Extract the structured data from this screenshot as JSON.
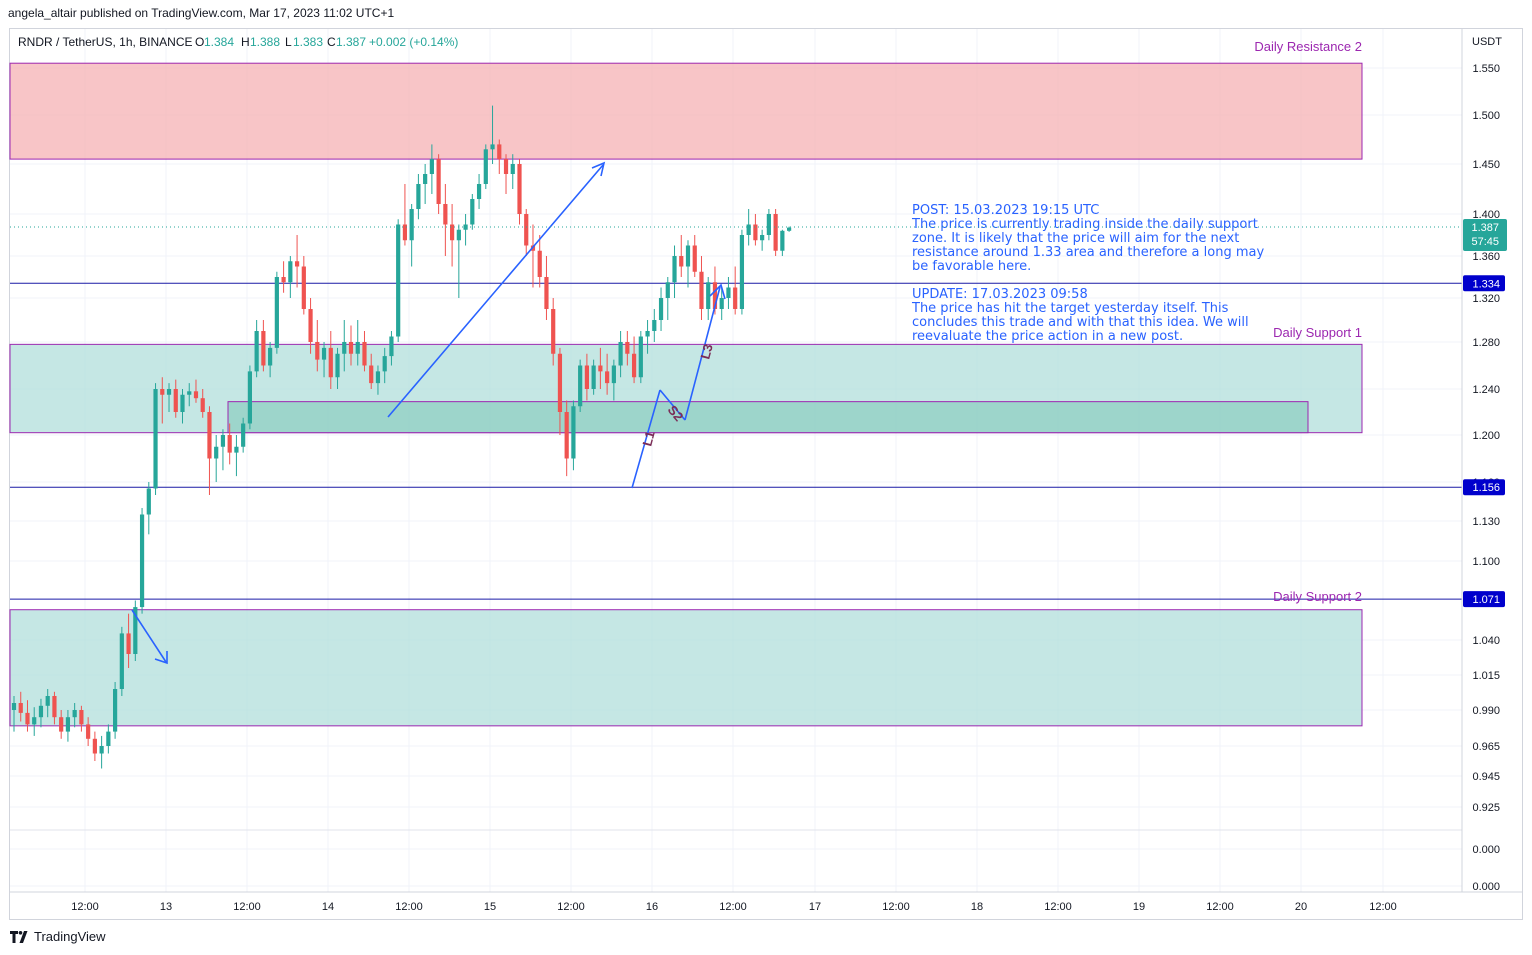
{
  "header": {
    "publisher": "angela_altair published on TradingView.com, Mar 17, 2023 11:02 UTC+1"
  },
  "footer": {
    "brand": "TradingView",
    "logo_icon": "tradingview-logo-icon"
  },
  "colors": {
    "up": "#26a69a",
    "down": "#ef5350",
    "line": "#1a1aa6",
    "drawing": "#2962ff",
    "resistance_fill": "#f6b1b4",
    "support_fill": "#b2dfdb",
    "support_inner_fill": "#8fcfc3",
    "zone_border": "#9c27b0",
    "zone_label": "#9c27b0",
    "price_badge": "#0000cc",
    "last_price": "#26a69a"
  },
  "chart_data": {
    "type": "candlestick",
    "symbol_line": {
      "symbol": "RNDR / TetherUS, 1h, BINANCE",
      "o_label": "O",
      "o": "1.384",
      "h_label": "H",
      "h": "1.388",
      "l_label": "L",
      "l": "1.383",
      "c_label": "C",
      "c": "1.387",
      "change": "+0.002 (+0.14%)"
    },
    "currency": "USDT",
    "y_ticks": [
      "1.550",
      "1.500",
      "1.450",
      "1.400",
      "1.360",
      "1.320",
      "1.280",
      "1.240",
      "1.200",
      "1.160",
      "1.130",
      "1.100",
      "1.040",
      "1.015",
      "0.990",
      "0.965",
      "0.945",
      "0.925",
      "0.000",
      "0.000"
    ],
    "x_ticks": [
      "12:00",
      "13",
      "12:00",
      "14",
      "12:00",
      "15",
      "12:00",
      "16",
      "12:00",
      "17",
      "12:00",
      "18",
      "12:00",
      "19",
      "12:00",
      "20",
      "12:00"
    ],
    "last_price": {
      "value": "1.387",
      "countdown": "57:45"
    },
    "horizontal_lines": [
      {
        "value": 1.334,
        "label": "1.334"
      },
      {
        "value": 1.156,
        "label": "1.156"
      },
      {
        "value": 1.071,
        "label": "1.071"
      }
    ],
    "zones": [
      {
        "name": "Daily Resistance 2",
        "type": "resistance",
        "top": 1.555,
        "bottom": 1.455
      },
      {
        "name": "Daily Support 1",
        "type": "support",
        "top": 1.278,
        "bottom": 1.202
      },
      {
        "name": "",
        "type": "support-inner",
        "top": 1.229,
        "bottom": 1.202
      },
      {
        "name": "Daily Support 2",
        "type": "support",
        "top": 1.063,
        "bottom": 0.979
      }
    ],
    "wave_labels": [
      "L1",
      "S2",
      "L3"
    ],
    "note_post": {
      "title": "POST: 15.03.2023 19:15 UTC",
      "lines": [
        "The price is currently trading inside the daily support",
        "zone. It is likely that the price will aim for the next",
        "resistance around 1.33 area and therefore a long may",
        "be favorable here."
      ]
    },
    "note_update": {
      "title": "UPDATE: 17.03.2023 09:58",
      "lines": [
        "The price has hit the target yesterday itself. This",
        "concludes this trade and with that this idea. We will",
        "reevaluate the price action in a new post."
      ]
    },
    "candles": [
      [
        0.99,
        1.0,
        0.975,
        0.995
      ],
      [
        0.995,
        1.003,
        0.982,
        0.988
      ],
      [
        0.988,
        0.997,
        0.975,
        0.98
      ],
      [
        0.98,
        0.992,
        0.972,
        0.985
      ],
      [
        0.985,
        0.998,
        0.978,
        0.993
      ],
      [
        0.993,
        1.005,
        0.985,
        1.0
      ],
      [
        1.0,
        1.003,
        0.98,
        0.985
      ],
      [
        0.985,
        0.99,
        0.97,
        0.975
      ],
      [
        0.975,
        0.99,
        0.968,
        0.985
      ],
      [
        0.985,
        0.995,
        0.978,
        0.99
      ],
      [
        0.99,
        0.993,
        0.975,
        0.98
      ],
      [
        0.98,
        0.985,
        0.965,
        0.97
      ],
      [
        0.97,
        0.975,
        0.955,
        0.96
      ],
      [
        0.96,
        0.972,
        0.95,
        0.965
      ],
      [
        0.965,
        0.98,
        0.96,
        0.975
      ],
      [
        0.975,
        1.01,
        0.97,
        1.005
      ],
      [
        1.005,
        1.05,
        1.0,
        1.045
      ],
      [
        1.045,
        1.06,
        1.02,
        1.03
      ],
      [
        1.03,
        1.07,
        1.025,
        1.065
      ],
      [
        1.065,
        1.14,
        1.06,
        1.135
      ],
      [
        1.135,
        1.16,
        1.12,
        1.155
      ],
      [
        1.155,
        1.245,
        1.15,
        1.24
      ],
      [
        1.24,
        1.25,
        1.21,
        1.235
      ],
      [
        1.235,
        1.245,
        1.22,
        1.24
      ],
      [
        1.24,
        1.248,
        1.215,
        1.22
      ],
      [
        1.22,
        1.24,
        1.21,
        1.235
      ],
      [
        1.235,
        1.245,
        1.225,
        1.238
      ],
      [
        1.238,
        1.248,
        1.228,
        1.232
      ],
      [
        1.232,
        1.24,
        1.215,
        1.22
      ],
      [
        1.22,
        1.225,
        1.15,
        1.18
      ],
      [
        1.18,
        1.2,
        1.16,
        1.19
      ],
      [
        1.19,
        1.205,
        1.17,
        1.2
      ],
      [
        1.2,
        1.21,
        1.175,
        1.185
      ],
      [
        1.185,
        1.2,
        1.165,
        1.19
      ],
      [
        1.19,
        1.215,
        1.185,
        1.21
      ],
      [
        1.21,
        1.26,
        1.205,
        1.255
      ],
      [
        1.255,
        1.3,
        1.25,
        1.29
      ],
      [
        1.29,
        1.3,
        1.255,
        1.26
      ],
      [
        1.26,
        1.28,
        1.25,
        1.275
      ],
      [
        1.275,
        1.345,
        1.27,
        1.34
      ],
      [
        1.34,
        1.355,
        1.325,
        1.335
      ],
      [
        1.335,
        1.36,
        1.32,
        1.355
      ],
      [
        1.355,
        1.38,
        1.33,
        1.35
      ],
      [
        1.35,
        1.36,
        1.305,
        1.31
      ],
      [
        1.31,
        1.32,
        1.27,
        1.28
      ],
      [
        1.28,
        1.3,
        1.255,
        1.265
      ],
      [
        1.265,
        1.28,
        1.25,
        1.275
      ],
      [
        1.275,
        1.29,
        1.24,
        1.25
      ],
      [
        1.25,
        1.275,
        1.24,
        1.27
      ],
      [
        1.27,
        1.3,
        1.255,
        1.28
      ],
      [
        1.28,
        1.295,
        1.26,
        1.27
      ],
      [
        1.27,
        1.3,
        1.26,
        1.28
      ],
      [
        1.28,
        1.29,
        1.255,
        1.26
      ],
      [
        1.26,
        1.27,
        1.24,
        1.245
      ],
      [
        1.245,
        1.26,
        1.235,
        1.255
      ],
      [
        1.255,
        1.275,
        1.245,
        1.268
      ],
      [
        1.268,
        1.29,
        1.26,
        1.285
      ],
      [
        1.285,
        1.395,
        1.28,
        1.39
      ],
      [
        1.39,
        1.43,
        1.37,
        1.375
      ],
      [
        1.375,
        1.41,
        1.35,
        1.405
      ],
      [
        1.405,
        1.44,
        1.395,
        1.43
      ],
      [
        1.43,
        1.45,
        1.41,
        1.44
      ],
      [
        1.44,
        1.47,
        1.42,
        1.455
      ],
      [
        1.455,
        1.46,
        1.4,
        1.41
      ],
      [
        1.41,
        1.43,
        1.36,
        1.39
      ],
      [
        1.39,
        1.41,
        1.35,
        1.375
      ],
      [
        1.375,
        1.39,
        1.32,
        1.385
      ],
      [
        1.385,
        1.4,
        1.37,
        1.39
      ],
      [
        1.39,
        1.42,
        1.385,
        1.415
      ],
      [
        1.415,
        1.44,
        1.405,
        1.43
      ],
      [
        1.43,
        1.47,
        1.425,
        1.465
      ],
      [
        1.465,
        1.51,
        1.45,
        1.47
      ],
      [
        1.47,
        1.475,
        1.44,
        1.455
      ],
      [
        1.455,
        1.46,
        1.42,
        1.44
      ],
      [
        1.44,
        1.46,
        1.425,
        1.45
      ],
      [
        1.45,
        1.455,
        1.39,
        1.4
      ],
      [
        1.4,
        1.405,
        1.36,
        1.37
      ],
      [
        1.37,
        1.39,
        1.33,
        1.365
      ],
      [
        1.365,
        1.38,
        1.33,
        1.34
      ],
      [
        1.34,
        1.36,
        1.3,
        1.31
      ],
      [
        1.31,
        1.32,
        1.26,
        1.27
      ],
      [
        1.27,
        1.275,
        1.2,
        1.22
      ],
      [
        1.22,
        1.23,
        1.165,
        1.18
      ],
      [
        1.18,
        1.23,
        1.17,
        1.225
      ],
      [
        1.225,
        1.265,
        1.22,
        1.26
      ],
      [
        1.26,
        1.27,
        1.23,
        1.24
      ],
      [
        1.24,
        1.265,
        1.235,
        1.26
      ],
      [
        1.26,
        1.275,
        1.24,
        1.255
      ],
      [
        1.255,
        1.27,
        1.235,
        1.245
      ],
      [
        1.245,
        1.265,
        1.23,
        1.26
      ],
      [
        1.26,
        1.29,
        1.25,
        1.28
      ],
      [
        1.28,
        1.29,
        1.26,
        1.27
      ],
      [
        1.27,
        1.285,
        1.245,
        1.25
      ],
      [
        1.25,
        1.29,
        1.245,
        1.285
      ],
      [
        1.285,
        1.3,
        1.27,
        1.29
      ],
      [
        1.29,
        1.31,
        1.28,
        1.3
      ],
      [
        1.3,
        1.33,
        1.29,
        1.32
      ],
      [
        1.32,
        1.34,
        1.3,
        1.335
      ],
      [
        1.335,
        1.37,
        1.32,
        1.36
      ],
      [
        1.36,
        1.38,
        1.34,
        1.35
      ],
      [
        1.35,
        1.375,
        1.33,
        1.37
      ],
      [
        1.37,
        1.38,
        1.34,
        1.345
      ],
      [
        1.345,
        1.36,
        1.3,
        1.31
      ],
      [
        1.31,
        1.34,
        1.3,
        1.335
      ],
      [
        1.335,
        1.35,
        1.305,
        1.31
      ],
      [
        1.31,
        1.33,
        1.3,
        1.32
      ],
      [
        1.32,
        1.34,
        1.31,
        1.33
      ],
      [
        1.33,
        1.35,
        1.305,
        1.31
      ],
      [
        1.31,
        1.385,
        1.305,
        1.38
      ],
      [
        1.38,
        1.405,
        1.37,
        1.39
      ],
      [
        1.39,
        1.4,
        1.37,
        1.375
      ],
      [
        1.375,
        1.385,
        1.365,
        1.38
      ],
      [
        1.38,
        1.405,
        1.375,
        1.4
      ],
      [
        1.4,
        1.405,
        1.36,
        1.365
      ],
      [
        1.365,
        1.385,
        1.36,
        1.384
      ],
      [
        1.384,
        1.388,
        1.383,
        1.387
      ]
    ]
  }
}
